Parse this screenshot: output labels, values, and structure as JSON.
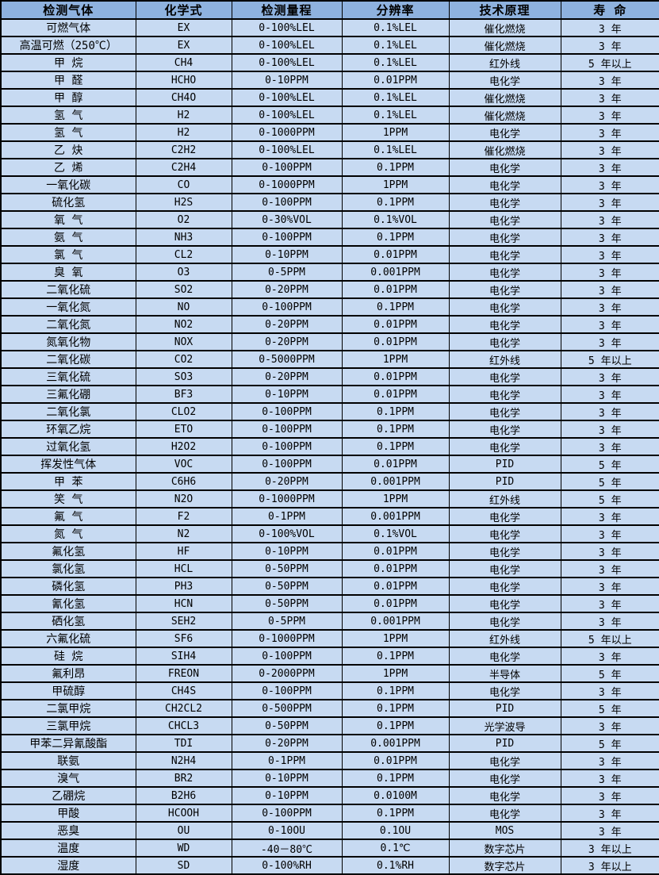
{
  "table": {
    "columns": [
      "检测气体",
      "化学式",
      "检测量程",
      "分辨率",
      "技术原理",
      "寿 命"
    ],
    "column_keys": [
      "gas-name",
      "chemical-formula",
      "detection-range",
      "resolution",
      "tech-principle",
      "lifespan"
    ],
    "colors": {
      "header_bg": "#8eb2df",
      "row_bg": "#c7daf2",
      "border": "#000000",
      "text": "#000000"
    },
    "rows": [
      [
        "可燃气体",
        "EX",
        "0-100%LEL",
        "0.1%LEL",
        "催化燃烧",
        "3 年"
      ],
      [
        "高温可燃（250℃）",
        "EX",
        "0-100%LEL",
        "0.1%LEL",
        "催化燃烧",
        "3 年"
      ],
      [
        "甲 烷",
        "CH4",
        "0-100%LEL",
        "0.1%LEL",
        "红外线",
        "5 年以上"
      ],
      [
        "甲 醛",
        "HCHO",
        "0-10PPM",
        "0.01PPM",
        "电化学",
        "3 年"
      ],
      [
        "甲 醇",
        "CH4O",
        "0-100%LEL",
        "0.1%LEL",
        "催化燃烧",
        "3 年"
      ],
      [
        "氢 气",
        "H2",
        "0-100%LEL",
        "0.1%LEL",
        "催化燃烧",
        "3 年"
      ],
      [
        "氢 气",
        "H2",
        "0-1000PPM",
        "1PPM",
        "电化学",
        "3 年"
      ],
      [
        "乙 炔",
        "C2H2",
        "0-100%LEL",
        "0.1%LEL",
        "催化燃烧",
        "3 年"
      ],
      [
        "乙 烯",
        "C2H4",
        "0-100PPM",
        "0.1PPM",
        "电化学",
        "3 年"
      ],
      [
        "一氧化碳",
        "CO",
        "0-1000PPM",
        "1PPM",
        "电化学",
        "3 年"
      ],
      [
        "硫化氢",
        "H2S",
        "0-100PPM",
        "0.1PPM",
        "电化学",
        "3 年"
      ],
      [
        "氧 气",
        "O2",
        "0-30%VOL",
        "0.1%VOL",
        "电化学",
        "3 年"
      ],
      [
        "氨 气",
        "NH3",
        "0-100PPM",
        "0.1PPM",
        "电化学",
        "3 年"
      ],
      [
        "氯 气",
        "CL2",
        "0-10PPM",
        "0.01PPM",
        "电化学",
        "3 年"
      ],
      [
        "臭 氧",
        "O3",
        "0-5PPM",
        "0.001PPM",
        "电化学",
        "3 年"
      ],
      [
        "二氧化硫",
        "SO2",
        "0-20PPM",
        "0.01PPM",
        "电化学",
        "3 年"
      ],
      [
        "一氧化氮",
        "NO",
        "0-100PPM",
        "0.1PPM",
        "电化学",
        "3 年"
      ],
      [
        "二氧化氮",
        "NO2",
        "0-20PPM",
        "0.01PPM",
        "电化学",
        "3 年"
      ],
      [
        "氮氧化物",
        "NOX",
        "0-20PPM",
        "0.01PPM",
        "电化学",
        "3 年"
      ],
      [
        "二氧化碳",
        "CO2",
        "0-5000PPM",
        "1PPM",
        "红外线",
        "5 年以上"
      ],
      [
        "三氧化硫",
        "SO3",
        "0-20PPM",
        "0.01PPM",
        "电化学",
        "3 年"
      ],
      [
        "三氟化硼",
        "BF3",
        "0-10PPM",
        "0.01PPM",
        "电化学",
        "3 年"
      ],
      [
        "二氧化氯",
        "CLO2",
        "0-100PPM",
        "0.1PPM",
        "电化学",
        "3 年"
      ],
      [
        "环氧乙烷",
        "ETO",
        "0-100PPM",
        "0.1PPM",
        "电化学",
        "3 年"
      ],
      [
        "过氧化氢",
        "H2O2",
        "0-100PPM",
        "0.1PPM",
        "电化学",
        "3 年"
      ],
      [
        "挥发性气体",
        "VOC",
        "0-100PPM",
        "0.01PPM",
        "PID",
        "5 年"
      ],
      [
        "甲 苯",
        "C6H6",
        "0-20PPM",
        "0.001PPM",
        "PID",
        "5 年"
      ],
      [
        "笑 气",
        "N2O",
        "0-1000PPM",
        "1PPM",
        "红外线",
        "5 年"
      ],
      [
        "氟 气",
        "F2",
        "0-1PPM",
        "0.001PPM",
        "电化学",
        "3 年"
      ],
      [
        "氮 气",
        "N2",
        "0-100%VOL",
        "0.1%VOL",
        "电化学",
        "3 年"
      ],
      [
        "氟化氢",
        "HF",
        "0-10PPM",
        "0.01PPM",
        "电化学",
        "3 年"
      ],
      [
        "氯化氢",
        "HCL",
        "0-50PPM",
        "0.01PPM",
        "电化学",
        "3 年"
      ],
      [
        "磷化氢",
        "PH3",
        "0-50PPM",
        "0.01PPM",
        "电化学",
        "3 年"
      ],
      [
        "氰化氢",
        "HCN",
        "0-50PPM",
        "0.01PPM",
        "电化学",
        "3 年"
      ],
      [
        "硒化氢",
        "SEH2",
        "0-5PPM",
        "0.001PPM",
        "电化学",
        "3 年"
      ],
      [
        "六氟化硫",
        "SF6",
        "0-1000PPM",
        "1PPM",
        "红外线",
        "5 年以上"
      ],
      [
        "硅 烷",
        "SIH4",
        "0-100PPM",
        "0.1PPM",
        "电化学",
        "3 年"
      ],
      [
        "氟利昂",
        "FREON",
        "0-2000PPM",
        "1PPM",
        "半导体",
        "5 年"
      ],
      [
        "甲硫醇",
        "CH4S",
        "0-100PPM",
        "0.1PPM",
        "电化学",
        "3 年"
      ],
      [
        "二氯甲烷",
        "CH2CL2",
        "0-500PPM",
        "0.1PPM",
        "PID",
        "5 年"
      ],
      [
        "三氯甲烷",
        "CHCL3",
        "0-50PPM",
        "0.1PPM",
        "光学波导",
        "3 年"
      ],
      [
        "甲苯二异氰酸酯",
        "TDI",
        "0-20PPM",
        "0.001PPM",
        "PID",
        "5 年"
      ],
      [
        "联氨",
        "N2H4",
        "0-1PPM",
        "0.01PPM",
        "电化学",
        "3 年"
      ],
      [
        "溴气",
        "BR2",
        "0-10PPM",
        "0.1PPM",
        "电化学",
        "3 年"
      ],
      [
        "乙硼烷",
        "B2H6",
        "0-10PPM",
        "0.0100M",
        "电化学",
        "3 年"
      ],
      [
        "甲酸",
        "HCOOH",
        "0-100PPM",
        "0.1PPM",
        "电化学",
        "3 年"
      ],
      [
        "恶臭",
        "OU",
        "0-10OU",
        "0.1OU",
        "MOS",
        "3 年"
      ],
      [
        "温度",
        "WD",
        "-40－80℃",
        "0.1℃",
        "数字芯片",
        "3 年以上"
      ],
      [
        "湿度",
        "SD",
        "0-100%RH",
        "0.1%RH",
        "数字芯片",
        "3 年以上"
      ]
    ]
  }
}
